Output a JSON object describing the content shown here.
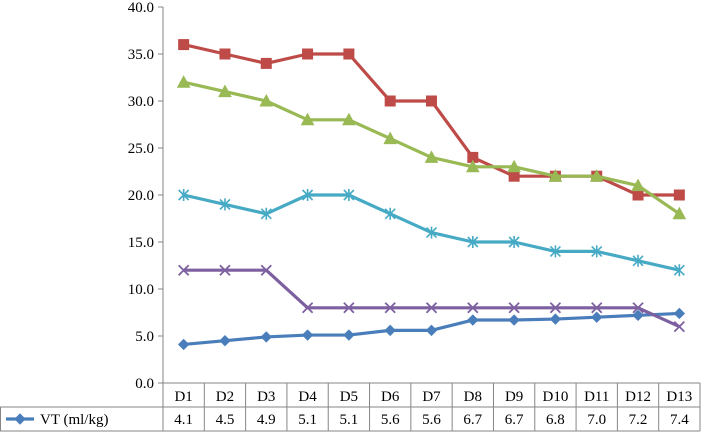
{
  "chart_data": {
    "type": "line",
    "categories": [
      "D1",
      "D2",
      "D3",
      "D4",
      "D5",
      "D6",
      "D7",
      "D8",
      "D9",
      "D10",
      "D11",
      "D12",
      "D13"
    ],
    "ylim": [
      0,
      40
    ],
    "yticks": [
      "0.0",
      "5.0",
      "10.0",
      "15.0",
      "20.0",
      "25.0",
      "30.0",
      "35.0",
      "40.0"
    ],
    "grid": false,
    "series": [
      {
        "name": "VT (ml/kg)",
        "color": "#4a7ebb",
        "marker": "diamond",
        "in_table": true,
        "values": [
          4.1,
          4.5,
          4.9,
          5.1,
          5.1,
          5.6,
          5.6,
          6.7,
          6.7,
          6.8,
          7.0,
          7.2,
          7.4
        ],
        "labels": [
          "4.1",
          "4.5",
          "4.9",
          "5.1",
          "5.1",
          "5.6",
          "5.6",
          "6.7",
          "6.7",
          "6.8",
          "7.0",
          "7.2",
          "7.4"
        ]
      },
      {
        "color": "#be4b48",
        "marker": "square",
        "in_table": false,
        "values": [
          36,
          35,
          34,
          35,
          35,
          30,
          30,
          24,
          22,
          22,
          22,
          20,
          20
        ]
      },
      {
        "color": "#98b954",
        "marker": "triangle",
        "in_table": false,
        "values": [
          32,
          31,
          30,
          28,
          28,
          26,
          24,
          23,
          23,
          22,
          22,
          21,
          18
        ]
      },
      {
        "color": "#7d60a0",
        "marker": "x",
        "in_table": false,
        "values": [
          12,
          12,
          12,
          8,
          8,
          8,
          8,
          8,
          8,
          8,
          8,
          8,
          6
        ]
      },
      {
        "color": "#46aac5",
        "marker": "star",
        "in_table": false,
        "values": [
          20,
          19,
          18,
          20,
          20,
          18,
          16,
          15,
          15,
          14,
          14,
          13,
          12
        ]
      }
    ]
  }
}
